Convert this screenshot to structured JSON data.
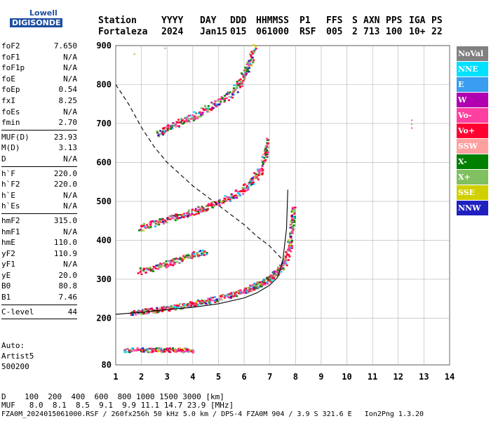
{
  "logo": {
    "brand_line1": "Lowell",
    "brand_line2": "DIGISONDE"
  },
  "header": {
    "labels": [
      "Station",
      "YYYY",
      "DAY",
      "DDD",
      "HHMMSS",
      "P1",
      "FFS",
      "S",
      "AXN",
      "PPS",
      "IGA",
      "PS"
    ],
    "values": [
      "Fortaleza",
      "2024",
      "Jan15",
      "015",
      "061000",
      "RSF",
      "005",
      "2",
      "713",
      "100",
      "10+",
      "22"
    ]
  },
  "params": [
    {
      "name": "foF2",
      "value": "7.650"
    },
    {
      "name": "foF1",
      "value": "N/A"
    },
    {
      "name": "foF1p",
      "value": "N/A"
    },
    {
      "name": "foE",
      "value": "N/A"
    },
    {
      "name": "foEp",
      "value": "0.54"
    },
    {
      "name": "fxI",
      "value": "8.25"
    },
    {
      "name": "foEs",
      "value": "N/A"
    },
    {
      "name": "fmin",
      "value": "2.70"
    },
    {
      "sep": true
    },
    {
      "name": "MUF(D)",
      "value": "23.93"
    },
    {
      "name": "M(D)",
      "value": "3.13"
    },
    {
      "name": "D",
      "value": "N/A"
    },
    {
      "sep": true
    },
    {
      "name": "h`F",
      "value": "220.0"
    },
    {
      "name": "h`F2",
      "value": "220.0"
    },
    {
      "name": "h`E",
      "value": "N/A"
    },
    {
      "name": "h`Es",
      "value": "N/A"
    },
    {
      "sep": true
    },
    {
      "name": "hmF2",
      "value": "315.0"
    },
    {
      "name": "hmF1",
      "value": "N/A"
    },
    {
      "name": "hmE",
      "value": "110.0"
    },
    {
      "name": "yF2",
      "value": "110.9"
    },
    {
      "name": "yF1",
      "value": "N/A"
    },
    {
      "name": "yE",
      "value": "20.0"
    },
    {
      "name": "B0",
      "value": "80.8"
    },
    {
      "name": "B1",
      "value": "7.46"
    },
    {
      "sep": true
    },
    {
      "name": "C-level",
      "value": "44"
    },
    {
      "sep": true
    }
  ],
  "autoscale": {
    "line1": "Auto:",
    "line2": "Artist5",
    "line3": "500200"
  },
  "legend": [
    {
      "label": "NoVal",
      "color": "#808080"
    },
    {
      "label": "NNE",
      "color": "#00e0ff"
    },
    {
      "label": "E",
      "color": "#3a9df0"
    },
    {
      "label": "W",
      "color": "#b000b0"
    },
    {
      "label": "Vo-",
      "color": "#ff40a0"
    },
    {
      "label": "Vo+",
      "color": "#ff0030"
    },
    {
      "label": "SSW",
      "color": "#ffa0a0"
    },
    {
      "label": "X-",
      "color": "#008000"
    },
    {
      "label": "X+",
      "color": "#80c060"
    },
    {
      "label": "SSE",
      "color": "#d0d000"
    },
    {
      "label": "NNW",
      "color": "#2020c0"
    }
  ],
  "footer": {
    "line1": "D    100  200  400  600  800 1000 1500 3000 [km]",
    "line2": "MUF   8.0  8.1  8.5  9.1  9.9 11.1 14.7 23.9 [MHz]",
    "line3": "FZA0M_2024015061000.RSF / 260fx256h 50 kHz 5.0 km / DPS-4 FZA0M 904 / 3.9 S 321.6 E   Ion2Png 1.3.20"
  },
  "chart_data": {
    "type": "scatter",
    "title": "",
    "xlabel": "",
    "ylabel": "",
    "xlim": [
      1,
      14
    ],
    "ylim": [
      80,
      900
    ],
    "grid": true,
    "x_ticks": [
      1,
      2,
      3,
      4,
      5,
      6,
      7,
      8,
      9,
      10,
      11,
      12,
      13,
      14
    ],
    "y_ticks": [
      80,
      200,
      300,
      400,
      500,
      600,
      700,
      800,
      900
    ],
    "traces": [
      {
        "name": "F2 1st hop",
        "points": [
          [
            1.6,
            215
          ],
          [
            2.0,
            218
          ],
          [
            2.5,
            222
          ],
          [
            3.0,
            227
          ],
          [
            3.5,
            232
          ],
          [
            4.0,
            238
          ],
          [
            4.5,
            245
          ],
          [
            5.0,
            253
          ],
          [
            5.5,
            262
          ],
          [
            6.0,
            272
          ],
          [
            6.3,
            280
          ],
          [
            6.6,
            290
          ],
          [
            6.9,
            300
          ],
          [
            7.1,
            310
          ],
          [
            7.3,
            322
          ],
          [
            7.5,
            340
          ],
          [
            7.7,
            370
          ],
          [
            7.8,
            410
          ],
          [
            7.85,
            450
          ],
          [
            7.9,
            480
          ]
        ]
      },
      {
        "name": "F2 2nd hop",
        "points": [
          [
            1.9,
            432
          ],
          [
            2.5,
            445
          ],
          [
            3.0,
            455
          ],
          [
            3.5,
            465
          ],
          [
            4.0,
            475
          ],
          [
            4.5,
            487
          ],
          [
            5.0,
            500
          ],
          [
            5.5,
            515
          ],
          [
            6.0,
            535
          ],
          [
            6.3,
            555
          ],
          [
            6.6,
            580
          ],
          [
            6.8,
            620
          ],
          [
            6.9,
            660
          ]
        ]
      },
      {
        "name": "F2 3rd hop",
        "points": [
          [
            2.6,
            675
          ],
          [
            3.0,
            690
          ],
          [
            3.5,
            705
          ],
          [
            4.0,
            720
          ],
          [
            4.5,
            738
          ],
          [
            5.0,
            758
          ],
          [
            5.5,
            780
          ],
          [
            5.8,
            805
          ],
          [
            6.0,
            830
          ],
          [
            6.2,
            860
          ],
          [
            6.4,
            895
          ]
        ]
      },
      {
        "name": "oblique trace",
        "points": [
          [
            1.9,
            322
          ],
          [
            2.5,
            332
          ],
          [
            3.0,
            342
          ],
          [
            3.5,
            352
          ],
          [
            4.0,
            365
          ],
          [
            4.5,
            372
          ]
        ]
      },
      {
        "name": "low trace",
        "points": [
          [
            1.3,
            120
          ],
          [
            2.0,
            120
          ],
          [
            2.5,
            120
          ],
          [
            3.0,
            120
          ],
          [
            3.5,
            119
          ],
          [
            4.0,
            119
          ]
        ]
      }
    ],
    "profile_line": [
      [
        1.0,
        210
      ],
      [
        2.0,
        215
      ],
      [
        3.0,
        222
      ],
      [
        4.0,
        228
      ],
      [
        5.0,
        237
      ],
      [
        6.0,
        252
      ],
      [
        6.5,
        265
      ],
      [
        7.0,
        285
      ],
      [
        7.3,
        305
      ],
      [
        7.5,
        345
      ],
      [
        7.65,
        430
      ],
      [
        7.7,
        530
      ]
    ],
    "muf_dashed_line": [
      [
        1.0,
        800
      ],
      [
        1.5,
        750
      ],
      [
        2.0,
        690
      ],
      [
        2.5,
        640
      ],
      [
        3.0,
        600
      ],
      [
        3.5,
        570
      ],
      [
        4.0,
        540
      ],
      [
        4.5,
        515
      ],
      [
        5.0,
        490
      ],
      [
        5.5,
        465
      ],
      [
        6.0,
        440
      ],
      [
        6.5,
        410
      ],
      [
        7.0,
        385
      ],
      [
        7.5,
        350
      ]
    ],
    "isolated_points": [
      [
        1.7,
        880
      ],
      [
        2.9,
        895
      ],
      [
        12.5,
        710
      ],
      [
        12.5,
        700
      ],
      [
        12.5,
        690
      ]
    ]
  }
}
